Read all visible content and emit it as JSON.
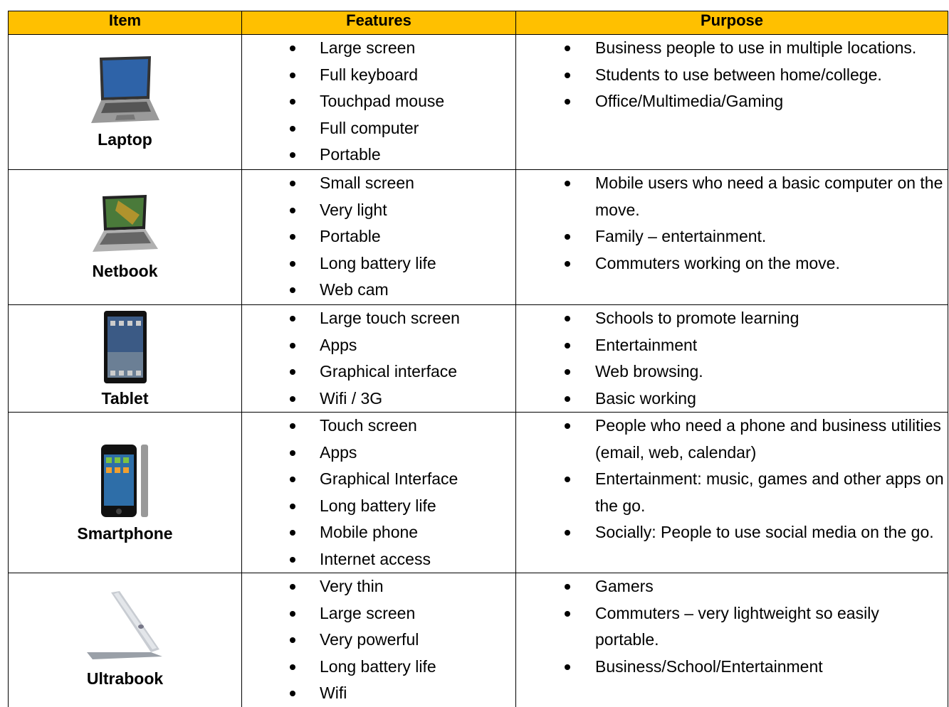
{
  "table": {
    "header": [
      "Item",
      "Features",
      "Purpose"
    ],
    "rows": [
      {
        "item": "Laptop",
        "features": [
          "Large screen",
          "Full keyboard",
          "Touchpad mouse",
          "Full computer",
          "Portable"
        ],
        "purpose": [
          "Business people to use in multiple locations.",
          "Students to use between home/college.",
          "Office/Multimedia/Gaming"
        ]
      },
      {
        "item": "Netbook",
        "features": [
          "Small screen",
          "Very light",
          "Portable",
          "Long battery life",
          "Web cam"
        ],
        "purpose": [
          "Mobile users who need a basic computer on the move.",
          "Family – entertainment.",
          "Commuters working on the move."
        ]
      },
      {
        "item": "Tablet",
        "features": [
          "Large touch screen",
          "Apps",
          "Graphical interface",
          "Wifi / 3G"
        ],
        "purpose": [
          "Schools to promote learning",
          "Entertainment",
          "Web browsing.",
          "Basic working"
        ]
      },
      {
        "item": "Smartphone",
        "features": [
          "Touch screen",
          "Apps",
          "Graphical Interface",
          "Long battery life",
          "Mobile phone",
          "Internet access"
        ],
        "purpose": [
          "People who need a phone and business utilities (email, web, calendar)",
          "Entertainment: music, games and other apps on the go.",
          "Socially: People to use social media on the go."
        ]
      },
      {
        "item": "Ultrabook",
        "features": [
          "Very thin",
          "Large screen",
          "Very powerful",
          "Long battery life",
          "Wifi"
        ],
        "purpose": [
          "Gamers",
          "Commuters – very lightweight so easily portable.",
          "Business/School/Entertainment"
        ]
      }
    ]
  }
}
